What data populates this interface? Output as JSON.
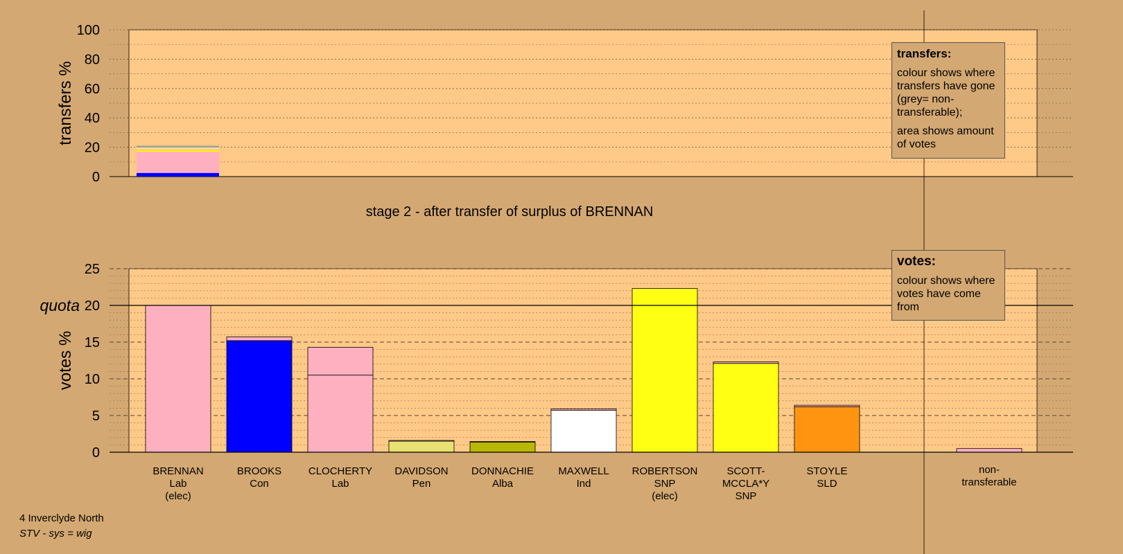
{
  "footer": {
    "constituency": "4 Inverclyde North",
    "system": "STV - sys = wig"
  },
  "stage_title": "stage 2 - after transfer of surplus of BRENNAN",
  "legends": {
    "transfers": {
      "heading": "transfers:",
      "para1": "colour shows where transfers have gone (grey= non-transferable);",
      "para2": "area shows amount of votes"
    },
    "votes": {
      "heading": "votes:",
      "para1": "colour shows where votes have come from"
    }
  },
  "colors": {
    "background": "#d4a872",
    "plot_background": "#ffc987",
    "Lab": "#ffb0c0",
    "Con": "#0000ff",
    "Pen": "#e8e070",
    "Alba": "#b8b800",
    "Ind": "#ffffff",
    "SNP": "#ffff14",
    "SLD": "#ff9410",
    "nontransferable": "#a0a0a0"
  },
  "chart_data": [
    {
      "type": "bar",
      "title": "",
      "ylabel": "transfers %",
      "ylim": [
        0,
        100
      ],
      "yticks": [
        "0",
        "20",
        "40",
        "60",
        "80",
        "100"
      ],
      "stacks": [
        {
          "candidate": "BRENNAN",
          "segments": [
            {
              "party": "Con",
              "value": 2.5
            },
            {
              "party": "Lab",
              "value": 14.5
            },
            {
              "party": "SNP",
              "value": 1.0
            },
            {
              "party": "SLD",
              "value": 0.5
            },
            {
              "party": "Ind",
              "value": 0.5
            },
            {
              "party": "Pen",
              "value": 0.8
            },
            {
              "party": "nontransferable",
              "value": 1.2
            }
          ]
        }
      ]
    },
    {
      "type": "bar",
      "title": "",
      "ylabel": "votes %",
      "quota_label": "quota",
      "quota": 20,
      "ylim": [
        0,
        25
      ],
      "yticks": [
        "0",
        "5",
        "10",
        "15",
        "20",
        "25"
      ],
      "candidates": [
        {
          "name": "BRENNAN",
          "party": "Lab",
          "status": "(elec)",
          "segments": [
            {
              "party": "Lab",
              "value": 20.0
            }
          ]
        },
        {
          "name": "BROOKS",
          "party": "Con",
          "status": "",
          "segments": [
            {
              "party": "Con",
              "value": 15.2
            },
            {
              "party": "Lab",
              "value": 0.5
            }
          ]
        },
        {
          "name": "CLOCHERTY",
          "party": "Lab",
          "status": "",
          "segments": [
            {
              "party": "Lab",
              "value": 10.5
            },
            {
              "party": "Lab",
              "value": 3.8
            }
          ]
        },
        {
          "name": "DAVIDSON",
          "party": "Pen",
          "status": "",
          "segments": [
            {
              "party": "Pen",
              "value": 1.5
            },
            {
              "party": "Lab",
              "value": 0.1
            }
          ]
        },
        {
          "name": "DONNACHIE",
          "party": "Alba",
          "status": "",
          "segments": [
            {
              "party": "Alba",
              "value": 1.4
            },
            {
              "party": "Lab",
              "value": 0.05
            }
          ]
        },
        {
          "name": "MAXWELL",
          "party": "Ind",
          "status": "",
          "segments": [
            {
              "party": "Ind",
              "value": 5.7
            },
            {
              "party": "Lab",
              "value": 0.2
            }
          ]
        },
        {
          "name": "ROBERTSON",
          "party": "SNP",
          "status": "(elec)",
          "segments": [
            {
              "party": "SNP",
              "value": 22.3
            }
          ]
        },
        {
          "name": "SCOTT-MCCLA*Y",
          "party": "SNP",
          "status": "",
          "segments": [
            {
              "party": "SNP",
              "value": 12.1
            },
            {
              "party": "Lab",
              "value": 0.2
            }
          ]
        },
        {
          "name": "STOYLE",
          "party": "SLD",
          "status": "",
          "segments": [
            {
              "party": "SLD",
              "value": 6.2
            },
            {
              "party": "Lab",
              "value": 0.2
            }
          ]
        },
        {
          "name": "non-transferable",
          "display": [
            "non-",
            "transferable"
          ],
          "party": "",
          "status": "",
          "segments": [
            {
              "party": "Lab",
              "value": 0.5
            }
          ]
        }
      ]
    }
  ]
}
